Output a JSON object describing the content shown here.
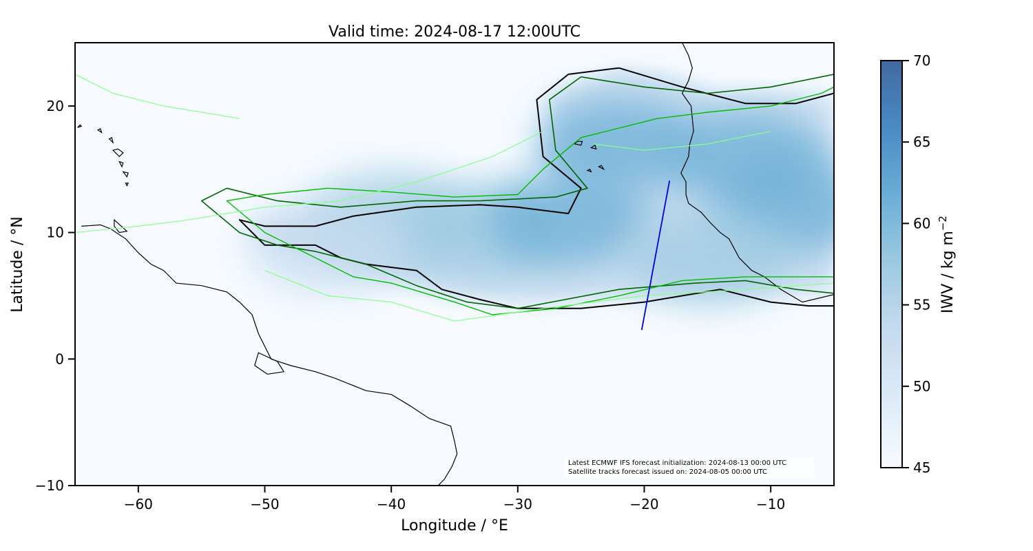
{
  "chart_data": {
    "type": "map",
    "title": "Valid time: 2024-08-17 12:00UTC",
    "xlabel": "Longitude / °E",
    "ylabel": "Latitude / °N",
    "xlim": [
      -65,
      -5
    ],
    "ylim": [
      -10,
      25
    ],
    "xticks": [
      -60,
      -50,
      -40,
      -30,
      -20,
      -10
    ],
    "yticks": [
      -10,
      0,
      10,
      20
    ],
    "xtick_labels": [
      "−60",
      "−50",
      "−40",
      "−30",
      "−20",
      "−10"
    ],
    "ytick_labels": [
      "−10",
      "0",
      "10",
      "20"
    ],
    "colorbar": {
      "label": "IWV / kg m",
      "label_sup": "−2",
      "range": [
        45,
        70
      ],
      "ticks": [
        45,
        50,
        55,
        60,
        65,
        70
      ],
      "tick_labels": [
        "45",
        "50",
        "55",
        "60",
        "65",
        "70"
      ],
      "colors": [
        "#f7fbff",
        "#deebf7",
        "#c6dbef",
        "#9ecae1",
        "#6baed6",
        "#4a8bc4",
        "#4169a0"
      ]
    },
    "satellite_track": {
      "color": "#0000dd",
      "points": [
        [
          -20.2,
          2.3
        ],
        [
          -18.0,
          14.1
        ]
      ]
    },
    "annotation_lines": [
      "Latest ECMWF IFS forecast initialization: 2024-08-13 00:00 UTC",
      "Satellite tracks forecast issued on: 2024-08-05 00:00 UTC"
    ],
    "moisture_field": [
      {
        "lon": -40,
        "lat": 11,
        "iwv": 57
      },
      {
        "lon": -33,
        "lat": 10,
        "iwv": 59
      },
      {
        "lon": -26,
        "lat": 11,
        "iwv": 60
      },
      {
        "lon": -22,
        "lat": 17,
        "iwv": 60
      },
      {
        "lon": -12,
        "lat": 16,
        "iwv": 63
      },
      {
        "lon": -8,
        "lat": 12,
        "iwv": 61
      },
      {
        "lon": -15,
        "lat": 8,
        "iwv": 58
      },
      {
        "lon": -45,
        "lat": 9,
        "iwv": 52
      }
    ],
    "contours": {
      "colors": [
        "#000000",
        "#006400",
        "#00bb00",
        "#88ff88"
      ],
      "lines": [
        {
          "level": "black",
          "lonlat": [
            [
              -22,
              23
            ],
            [
              -26,
              22.5
            ],
            [
              -28.5,
              20.5
            ],
            [
              -28,
              16
            ],
            [
              -25,
              13.5
            ],
            [
              -26,
              11.5
            ],
            [
              -30,
              12
            ],
            [
              -33,
              12.2
            ],
            [
              -38,
              12
            ],
            [
              -43,
              11.3
            ],
            [
              -46,
              10.5
            ],
            [
              -50,
              10.5
            ],
            [
              -52,
              11
            ],
            [
              -50,
              9
            ],
            [
              -46,
              9
            ],
            [
              -44,
              8
            ],
            [
              -42,
              7.5
            ],
            [
              -38,
              7
            ],
            [
              -36,
              5.5
            ],
            [
              -33,
              4.7
            ],
            [
              -30,
              4
            ],
            [
              -25,
              4
            ],
            [
              -20,
              4.5
            ],
            [
              -14,
              5.5
            ],
            [
              -10,
              4.5
            ],
            [
              -7,
              4.2
            ],
            [
              -5,
              4.2
            ]
          ]
        },
        {
          "level": "black",
          "lonlat": [
            [
              -22,
              23
            ],
            [
              -17,
              21.5
            ],
            [
              -12,
              20.2
            ],
            [
              -8,
              20.2
            ],
            [
              -5,
              21
            ]
          ]
        },
        {
          "level": "dkgreen",
          "lonlat": [
            [
              -25,
              22.3
            ],
            [
              -27.5,
              20.5
            ],
            [
              -27,
              16.5
            ],
            [
              -24.5,
              13.5
            ],
            [
              -27,
              12.8
            ],
            [
              -33,
              12.5
            ],
            [
              -38,
              12.5
            ],
            [
              -44,
              12
            ],
            [
              -49,
              12.5
            ],
            [
              -53,
              13.5
            ],
            [
              -55,
              12.5
            ],
            [
              -52,
              10
            ],
            [
              -49,
              9
            ],
            [
              -46,
              8.5
            ],
            [
              -42,
              7.5
            ],
            [
              -38,
              5.8
            ],
            [
              -34,
              4.5
            ],
            [
              -30,
              4
            ],
            [
              -22,
              5.5
            ],
            [
              -16,
              6
            ],
            [
              -12,
              6.2
            ],
            [
              -8,
              5.5
            ],
            [
              -5,
              5.2
            ]
          ]
        },
        {
          "level": "dkgreen",
          "lonlat": [
            [
              -25,
              22.3
            ],
            [
              -20,
              21.5
            ],
            [
              -15,
              21
            ],
            [
              -10,
              21.5
            ],
            [
              -5,
              22.5
            ]
          ]
        },
        {
          "level": "green",
          "lonlat": [
            [
              -19,
              19
            ],
            [
              -25,
              17.5
            ],
            [
              -28,
              15
            ],
            [
              -30,
              13
            ],
            [
              -35,
              12.8
            ],
            [
              -40,
              13.2
            ],
            [
              -45,
              13.5
            ],
            [
              -50,
              13
            ],
            [
              -53,
              12.5
            ],
            [
              -50,
              10
            ],
            [
              -46,
              8
            ],
            [
              -43,
              6.5
            ],
            [
              -40,
              6
            ],
            [
              -35,
              4.5
            ],
            [
              -32,
              3.5
            ],
            [
              -27,
              4
            ],
            [
              -22,
              5
            ],
            [
              -17,
              6.2
            ],
            [
              -12,
              6.5
            ],
            [
              -8,
              6.5
            ],
            [
              -5,
              6.5
            ]
          ]
        },
        {
          "level": "green",
          "lonlat": [
            [
              -19,
              19
            ],
            [
              -15,
              19.5
            ],
            [
              -10,
              20
            ],
            [
              -6,
              21
            ],
            [
              -5,
              21.5
            ]
          ]
        },
        {
          "level": "ltgreen",
          "lonlat": [
            [
              -28,
              18
            ],
            [
              -32,
              16
            ],
            [
              -38,
              14
            ],
            [
              -44,
              12.5
            ],
            [
              -50,
              12
            ],
            [
              -56,
              11
            ],
            [
              -60,
              10.5
            ],
            [
              -65,
              10
            ]
          ]
        },
        {
          "level": "ltgreen",
          "lonlat": [
            [
              -50,
              7
            ],
            [
              -45,
              5
            ],
            [
              -40,
              4.5
            ],
            [
              -35,
              3
            ],
            [
              -28,
              4
            ],
            [
              -20,
              5
            ],
            [
              -12,
              5.5
            ],
            [
              -5,
              6
            ]
          ]
        },
        {
          "level": "ltgreen",
          "lonlat": [
            [
              -24,
              17
            ],
            [
              -20,
              16.5
            ],
            [
              -15,
              17
            ],
            [
              -10,
              18
            ]
          ]
        },
        {
          "level": "ltgreen",
          "lonlat": [
            [
              -65,
              22.5
            ],
            [
              -62,
              21
            ],
            [
              -58,
              20
            ],
            [
              -55,
              19.5
            ],
            [
              -52,
              19
            ]
          ]
        }
      ]
    },
    "coastline": {
      "color": "#000000",
      "south_america": [
        [
          -64.5,
          10.5
        ],
        [
          -63,
          10.6
        ],
        [
          -62.2,
          10.3
        ],
        [
          -61,
          9.5
        ],
        [
          -60,
          8.4
        ],
        [
          -59,
          7.5
        ],
        [
          -58,
          7
        ],
        [
          -57,
          6
        ],
        [
          -55,
          5.8
        ],
        [
          -53,
          5.3
        ],
        [
          -52,
          4.5
        ],
        [
          -51,
          3.5
        ],
        [
          -50.5,
          2
        ],
        [
          -50,
          1
        ],
        [
          -49.5,
          0
        ],
        [
          -48,
          -0.5
        ],
        [
          -46,
          -1
        ],
        [
          -44.5,
          -1.5
        ],
        [
          -42,
          -2.5
        ],
        [
          -40,
          -2.8
        ],
        [
          -38.5,
          -3.7
        ],
        [
          -37,
          -4.7
        ],
        [
          -35.3,
          -5.3
        ],
        [
          -35,
          -6.5
        ],
        [
          -34.8,
          -7.5
        ],
        [
          -35.2,
          -8.5
        ],
        [
          -35.8,
          -9.5
        ],
        [
          -36.3,
          -10
        ]
      ],
      "africa": [
        [
          -17,
          25
        ],
        [
          -16.5,
          24
        ],
        [
          -16.2,
          23
        ],
        [
          -16.5,
          22
        ],
        [
          -17,
          21
        ],
        [
          -16.3,
          20
        ],
        [
          -16.2,
          19
        ],
        [
          -16.1,
          18
        ],
        [
          -16.4,
          17
        ],
        [
          -16.5,
          16
        ],
        [
          -17.1,
          14.7
        ],
        [
          -16.7,
          14
        ],
        [
          -16.7,
          13
        ],
        [
          -16.5,
          12.3
        ],
        [
          -15.5,
          11.6
        ],
        [
          -14.8,
          10.8
        ],
        [
          -14,
          10
        ],
        [
          -13.3,
          9.5
        ],
        [
          -12.5,
          8
        ],
        [
          -11.5,
          7
        ],
        [
          -10.5,
          6.5
        ],
        [
          -9.2,
          5.5
        ],
        [
          -7.5,
          4.5
        ],
        [
          -5,
          5.1
        ]
      ],
      "islands": [
        [
          [
            -25.5,
            17.0
          ],
          [
            -25.0,
            16.9
          ],
          [
            -24.9,
            17.2
          ],
          [
            -25.3,
            17.2
          ],
          [
            -25.5,
            17.0
          ]
        ],
        [
          [
            -24.2,
            16.7
          ],
          [
            -23.8,
            16.6
          ],
          [
            -23.9,
            16.9
          ],
          [
            -24.2,
            16.7
          ]
        ],
        [
          [
            -23.6,
            15.2
          ],
          [
            -23.2,
            15.0
          ],
          [
            -23.4,
            15.3
          ],
          [
            -23.6,
            15.2
          ]
        ],
        [
          [
            -24.5,
            14.9
          ],
          [
            -24.2,
            14.8
          ],
          [
            -24.3,
            15.0
          ],
          [
            -24.5,
            14.9
          ]
        ],
        [
          [
            -62.0,
            16.5
          ],
          [
            -61.5,
            16.0
          ],
          [
            -61.2,
            16.3
          ],
          [
            -61.6,
            16.6
          ],
          [
            -62.0,
            16.5
          ]
        ],
        [
          [
            -61.2,
            14.8
          ],
          [
            -60.9,
            14.4
          ],
          [
            -60.8,
            14.7
          ],
          [
            -61.2,
            14.8
          ]
        ],
        [
          [
            -61.0,
            13.9
          ],
          [
            -60.9,
            13.7
          ],
          [
            -60.8,
            13.9
          ],
          [
            -61.0,
            13.9
          ]
        ],
        [
          [
            -61.9,
            11.0
          ],
          [
            -60.9,
            10.1
          ],
          [
            -61.5,
            10.0
          ],
          [
            -61.9,
            10.5
          ],
          [
            -61.9,
            11.0
          ]
        ],
        [
          [
            -61.5,
            15.6
          ],
          [
            -61.3,
            15.2
          ],
          [
            -61.2,
            15.5
          ],
          [
            -61.5,
            15.6
          ]
        ],
        [
          [
            -64.8,
            18.3
          ],
          [
            -64.5,
            18.4
          ],
          [
            -64.6,
            18.5
          ],
          [
            -64.8,
            18.3
          ]
        ],
        [
          [
            -63.2,
            18.1
          ],
          [
            -62.9,
            17.9
          ],
          [
            -63.0,
            18.2
          ],
          [
            -63.2,
            18.1
          ]
        ],
        [
          [
            -62.3,
            17.4
          ],
          [
            -62.0,
            17.1
          ],
          [
            -62.1,
            17.5
          ],
          [
            -62.3,
            17.4
          ]
        ],
        [
          [
            -50.5,
            0.5
          ],
          [
            -49.0,
            -0.2
          ],
          [
            -48.5,
            -1.0
          ],
          [
            -49.8,
            -1.2
          ],
          [
            -50.8,
            -0.5
          ],
          [
            -50.5,
            0.5
          ]
        ]
      ]
    }
  }
}
